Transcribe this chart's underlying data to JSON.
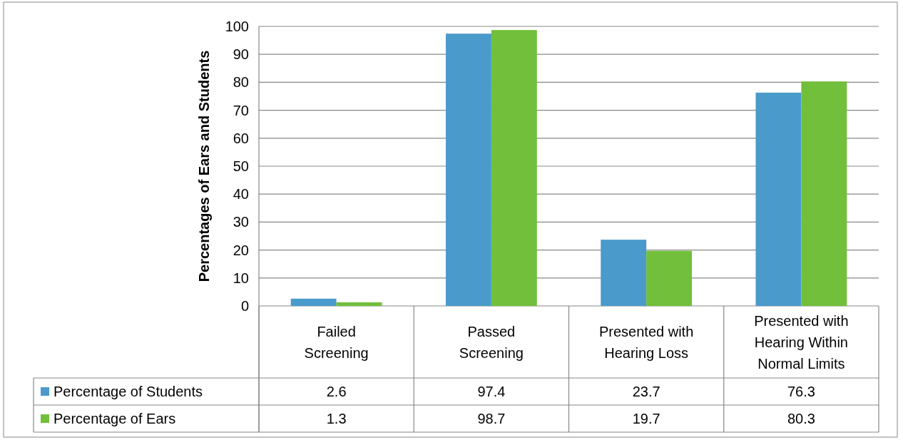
{
  "chart_data": {
    "type": "bar",
    "ylabel": "Percentages of Ears and Students",
    "categories": [
      "Failed Screening",
      "Passed Screening",
      "Presented with Hearing Loss",
      "Presented with Hearing Within Normal Limits"
    ],
    "series": [
      {
        "name": "Percentage of Students",
        "color": "#4a9bcb",
        "values": [
          2.6,
          97.4,
          23.7,
          76.3
        ]
      },
      {
        "name": "Percentage of Ears",
        "color": "#72bf3b",
        "values": [
          1.3,
          98.7,
          19.7,
          80.3
        ]
      }
    ],
    "ylim": [
      0,
      100
    ],
    "yticks": [
      0,
      10,
      20,
      30,
      40,
      50,
      60,
      70,
      80,
      90,
      100
    ],
    "grid": "y",
    "data_labels": true,
    "legend": "bottom"
  }
}
